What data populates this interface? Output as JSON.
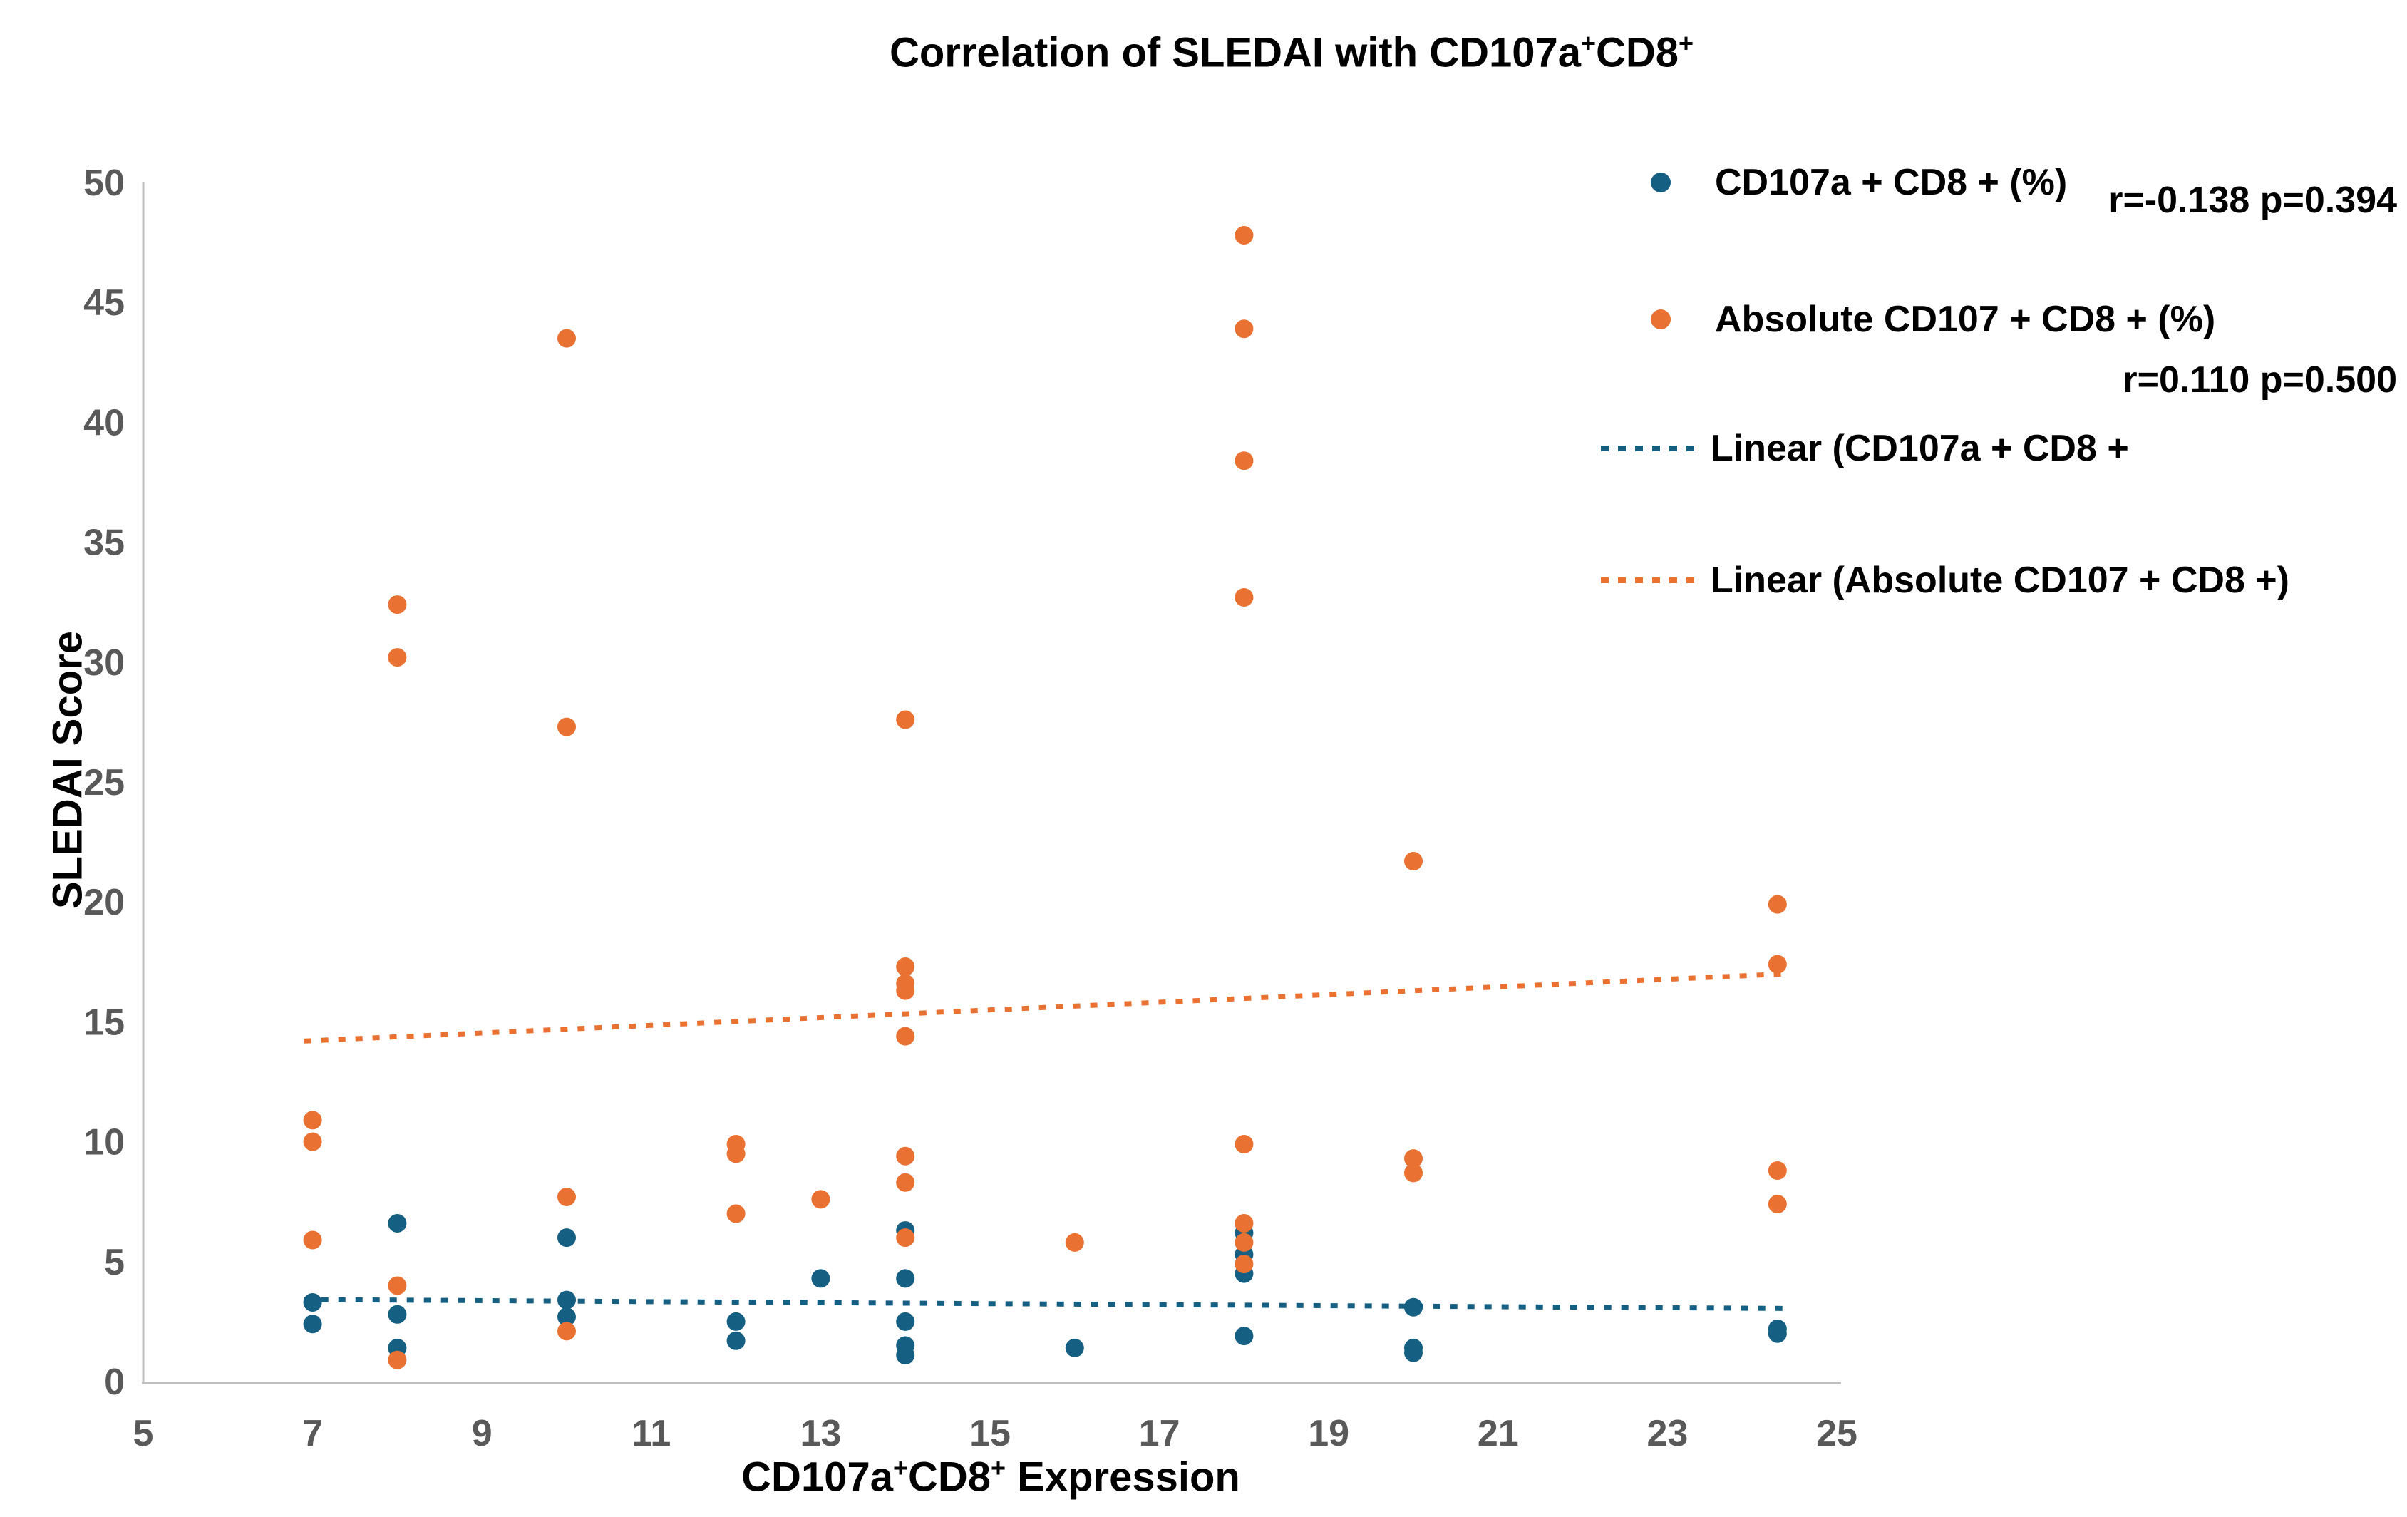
{
  "title": {
    "text": "Correlation of SLEDAI with CD107a+CD8+",
    "parts": [
      "Correlation of SLEDAI with CD107a",
      "+",
      "CD8",
      "+"
    ]
  },
  "axes": {
    "x": {
      "label_text": "CD107a+CD8+ Expression",
      "label_parts": [
        "CD107a",
        "+",
        "CD8",
        "+",
        " Expression"
      ],
      "ticks": [
        5,
        7,
        9,
        11,
        13,
        15,
        17,
        19,
        21,
        23,
        25
      ],
      "min": 5,
      "max": 25
    },
    "y": {
      "label": "SLEDAI Score",
      "ticks": [
        0,
        5,
        10,
        15,
        20,
        25,
        30,
        35,
        40,
        45,
        50
      ],
      "min": 0,
      "max": 50
    }
  },
  "legend": {
    "items": [
      {
        "label": "CD107a + CD8 + (%)",
        "marker": "dot",
        "color": "#156082"
      },
      {
        "label": "Absolute CD107 + CD8 + (%)",
        "marker": "dot",
        "color": "#E97132"
      },
      {
        "label": "Linear (CD107a + CD8 +",
        "marker": "dashed-line",
        "color": "#156082"
      },
      {
        "label": "Linear (Absolute CD107 + CD8 +)",
        "marker": "dashed-line",
        "color": "#E97132"
      }
    ]
  },
  "annotations": [
    {
      "text": "r=-0.138 p=0.394",
      "series": "CD107a + CD8 + (%)"
    },
    {
      "text": "r=0.110 p=0.500",
      "series": "Absolute CD107 + CD8 + (%)"
    }
  ],
  "colors": {
    "series1": "#156082",
    "series2": "#E97132",
    "axis_line": "#BFBFBF",
    "tick_text": "#595959",
    "text": "#000000"
  },
  "chart_data": {
    "type": "scatter",
    "title": "Correlation of SLEDAI with CD107a+CD8+",
    "xlabel": "CD107a+CD8+ Expression",
    "ylabel": "SLEDAI Score",
    "xlim": [
      5,
      25
    ],
    "ylim": [
      0,
      50
    ],
    "grid": false,
    "legend_position": "right-top",
    "series": [
      {
        "name": "CD107a + CD8 + (%)",
        "color": "#156082",
        "r": -0.138,
        "p": 0.394,
        "points": [
          [
            7,
            3.3
          ],
          [
            7,
            2.4
          ],
          [
            8,
            6.6
          ],
          [
            8,
            2.8
          ],
          [
            8,
            1.4
          ],
          [
            10,
            6.0
          ],
          [
            10,
            3.4
          ],
          [
            10,
            2.7
          ],
          [
            12,
            2.5
          ],
          [
            12,
            1.7
          ],
          [
            13,
            4.3
          ],
          [
            14,
            6.3
          ],
          [
            14,
            4.3
          ],
          [
            14,
            2.5
          ],
          [
            14,
            1.5
          ],
          [
            14,
            1.1
          ],
          [
            16,
            1.4
          ],
          [
            18,
            6.2
          ],
          [
            18,
            5.3
          ],
          [
            18,
            4.5
          ],
          [
            18,
            1.9
          ],
          [
            20,
            3.1
          ],
          [
            20,
            1.4
          ],
          [
            20,
            1.2
          ],
          [
            24.3,
            2.2
          ],
          [
            24.3,
            2.0
          ]
        ]
      },
      {
        "name": "Absolute CD107 + CD8 + (%)",
        "color": "#E97132",
        "r": 0.11,
        "p": 0.5,
        "points": [
          [
            7,
            10.9
          ],
          [
            7,
            10.0
          ],
          [
            7,
            5.9
          ],
          [
            8,
            32.4
          ],
          [
            8,
            30.2
          ],
          [
            8,
            4.0
          ],
          [
            8,
            0.9
          ],
          [
            10,
            43.5
          ],
          [
            10,
            27.3
          ],
          [
            10,
            7.7
          ],
          [
            10,
            2.1
          ],
          [
            12,
            9.9
          ],
          [
            12,
            9.5
          ],
          [
            12,
            7.0
          ],
          [
            13,
            7.6
          ],
          [
            14,
            27.6
          ],
          [
            14,
            17.3
          ],
          [
            14,
            16.6
          ],
          [
            14,
            16.3
          ],
          [
            14,
            14.4
          ],
          [
            14,
            9.4
          ],
          [
            14,
            8.3
          ],
          [
            14,
            6.0
          ],
          [
            16,
            5.8
          ],
          [
            18,
            47.8
          ],
          [
            18,
            43.9
          ],
          [
            18,
            38.4
          ],
          [
            18,
            32.7
          ],
          [
            18,
            9.9
          ],
          [
            18,
            6.6
          ],
          [
            18,
            5.8
          ],
          [
            18,
            4.9
          ],
          [
            20,
            21.7
          ],
          [
            20,
            9.3
          ],
          [
            20,
            8.7
          ],
          [
            24.3,
            19.9
          ],
          [
            24.3,
            17.4
          ],
          [
            24.3,
            8.8
          ],
          [
            24.3,
            7.4
          ]
        ]
      }
    ],
    "trendlines": [
      {
        "series": "CD107a + CD8 + (%)",
        "color": "#156082",
        "x1": 6.9,
        "y1": 3.42,
        "x2": 24.4,
        "y2": 3.05
      },
      {
        "series": "Absolute CD107 + CD8 + (%)",
        "color": "#E97132",
        "x1": 6.9,
        "y1": 14.2,
        "x2": 24.4,
        "y2": 17.0
      }
    ]
  }
}
